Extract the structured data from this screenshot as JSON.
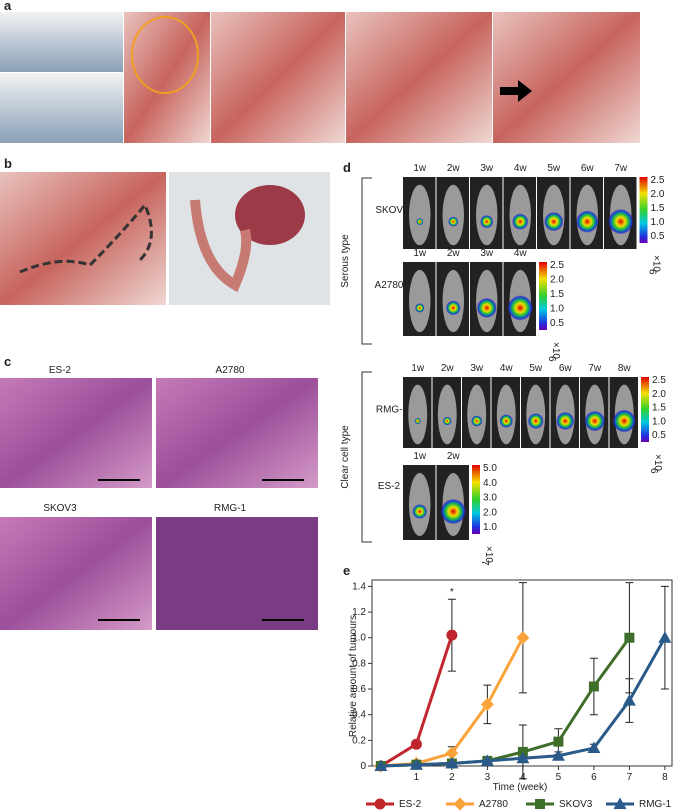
{
  "panels": {
    "a": "a",
    "b": "b",
    "c": "c",
    "d": "d",
    "e": "e"
  },
  "panel_c": {
    "labels": [
      "ES-2",
      "A2780",
      "SKOV3",
      "RMG-1"
    ]
  },
  "panel_d": {
    "groups": [
      "Serous type",
      "Clear cell type"
    ],
    "rows": [
      {
        "name": "SKOV3",
        "weeks": [
          "1w",
          "2w",
          "3w",
          "4w",
          "5w",
          "6w",
          "7w"
        ],
        "scale": [
          "2.5",
          "2.0",
          "1.5",
          "1.0",
          "0.5"
        ],
        "unit": "×10",
        "exp": "6"
      },
      {
        "name": "A2780",
        "weeks": [
          "1w",
          "2w",
          "3w",
          "4w"
        ],
        "scale": [
          "2.5",
          "2.0",
          "1.5",
          "1.0",
          "0.5"
        ],
        "unit": "×10",
        "exp": "6"
      },
      {
        "name": "RMG-1",
        "weeks": [
          "1w",
          "2w",
          "3w",
          "4w",
          "5w",
          "6w",
          "7w",
          "8w"
        ],
        "scale": [
          "2.5",
          "2.0",
          "1.5",
          "1.0",
          "0.5"
        ],
        "unit": "×10",
        "exp": "6"
      },
      {
        "name": "ES-2",
        "weeks": [
          "1w",
          "2w"
        ],
        "scale": [
          "5.0",
          "4.0",
          "3.0",
          "2.0",
          "1.0"
        ],
        "unit": "×10",
        "exp": "7"
      }
    ]
  },
  "chart_data": {
    "type": "line",
    "x_label": "Time (week)",
    "y_label": "Relative amount of tumours",
    "annotation": "*",
    "xlim": [
      -0.25,
      8.2
    ],
    "ylim": [
      0,
      1.45
    ],
    "xticks": [
      1,
      2,
      3,
      4,
      5,
      6,
      7,
      8
    ],
    "yticks": [
      0,
      0.2,
      0.4,
      0.6,
      0.8,
      {
        "value": 1,
        "label": "1.0"
      },
      1.2,
      1.4
    ],
    "series": [
      {
        "name": "ES-2",
        "color": "#c0262c",
        "marker": "circle",
        "x": [
          0,
          1,
          2
        ],
        "values": [
          0,
          0.17,
          1.02
        ],
        "errors": [
          0,
          0.02,
          0.28
        ]
      },
      {
        "name": "A2780",
        "color": "#f9a33a",
        "marker": "diamond",
        "x": [
          0,
          1,
          2,
          3,
          4
        ],
        "values": [
          0,
          0.02,
          0.1,
          0.48,
          1.0
        ],
        "errors": [
          0,
          0.01,
          0.05,
          0.15,
          0.43
        ]
      },
      {
        "name": "SKOV3",
        "color": "#3f6e2b",
        "marker": "square",
        "x": [
          0,
          1,
          2,
          3,
          4,
          5,
          6,
          7
        ],
        "values": [
          0,
          0.01,
          0.02,
          0.04,
          0.11,
          0.19,
          0.62,
          1.0
        ],
        "errors": [
          0,
          0.01,
          0.02,
          0.03,
          0.21,
          0.1,
          0.22,
          0.43
        ]
      },
      {
        "name": "RMG-1",
        "color": "#2a5a8a",
        "marker": "triangle",
        "x": [
          0,
          1,
          2,
          3,
          4,
          5,
          6,
          7,
          8
        ],
        "values": [
          0,
          0.01,
          0.02,
          0.04,
          0.06,
          0.08,
          0.14,
          0.51,
          1.0
        ],
        "errors": [
          0,
          0.01,
          0.01,
          0.02,
          0.03,
          0.03,
          0.03,
          0.17,
          0.4
        ]
      }
    ]
  }
}
